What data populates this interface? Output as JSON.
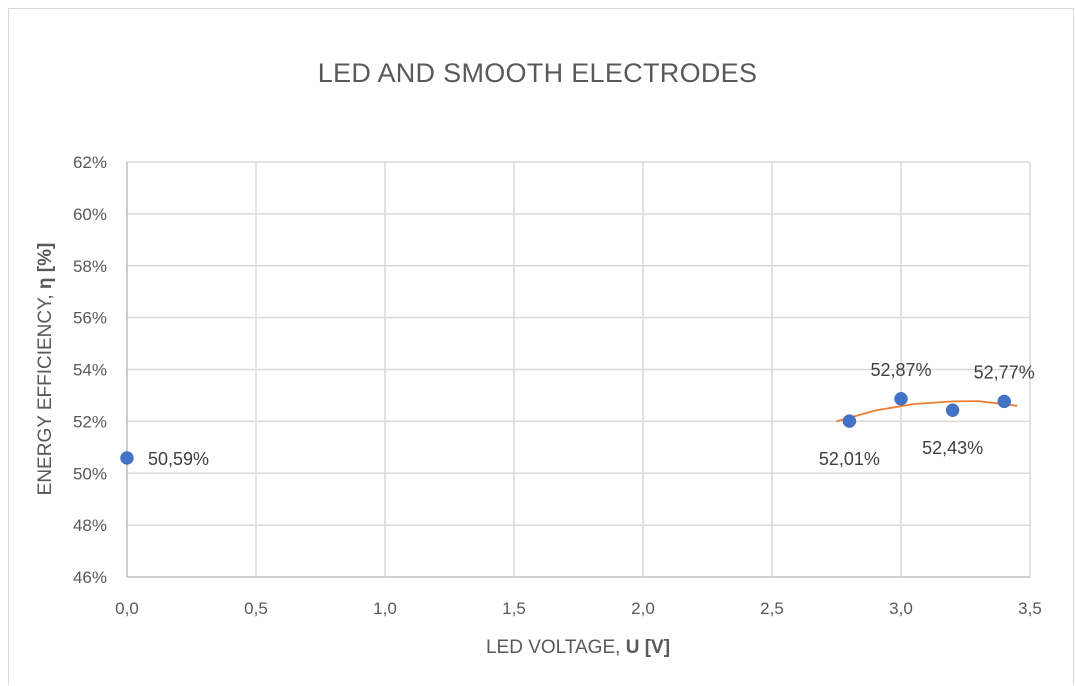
{
  "chart_data": {
    "type": "scatter",
    "title": "LED AND SMOOTH ELECTRODES",
    "xlabel": {
      "text": "LED VOLTAGE, ",
      "bold": "U [V]"
    },
    "ylabel": {
      "text": "ENERGY EFFICIENCY, ",
      "bold": "η [%]"
    },
    "xlim": [
      0,
      3.5
    ],
    "ylim": [
      46,
      62
    ],
    "x_ticks": [
      0,
      0.5,
      1.0,
      1.5,
      2.0,
      2.5,
      3.0,
      3.5
    ],
    "x_tick_labels": [
      "0,0",
      "0,5",
      "1,0",
      "1,5",
      "2,0",
      "2,5",
      "3,0",
      "3,5"
    ],
    "y_ticks": [
      46,
      48,
      50,
      52,
      54,
      56,
      58,
      60,
      62
    ],
    "y_tick_labels": [
      "46%",
      "48%",
      "50%",
      "52%",
      "54%",
      "56%",
      "58%",
      "60%",
      "62%"
    ],
    "grid": true,
    "series": [
      {
        "points": [
          {
            "x": 0.0,
            "y": 50.59,
            "label": "50,59%",
            "label_pos": "right"
          },
          {
            "x": 2.8,
            "y": 52.01,
            "label": "52,01%",
            "label_pos": "below"
          },
          {
            "x": 3.0,
            "y": 52.87,
            "label": "52,87%",
            "label_pos": "above"
          },
          {
            "x": 3.2,
            "y": 52.43,
            "label": "52,43%",
            "label_pos": "below"
          },
          {
            "x": 3.4,
            "y": 52.77,
            "label": "52,77%",
            "label_pos": "above"
          }
        ],
        "color": "#4472c4"
      }
    ],
    "trendline": {
      "type": "polynomial",
      "color": "#ed7d31",
      "x_range": [
        2.75,
        3.45
      ],
      "points": [
        [
          2.75,
          52.0
        ],
        [
          2.9,
          52.42
        ],
        [
          3.05,
          52.67
        ],
        [
          3.2,
          52.77
        ],
        [
          3.3,
          52.78
        ],
        [
          3.45,
          52.6
        ]
      ]
    }
  }
}
